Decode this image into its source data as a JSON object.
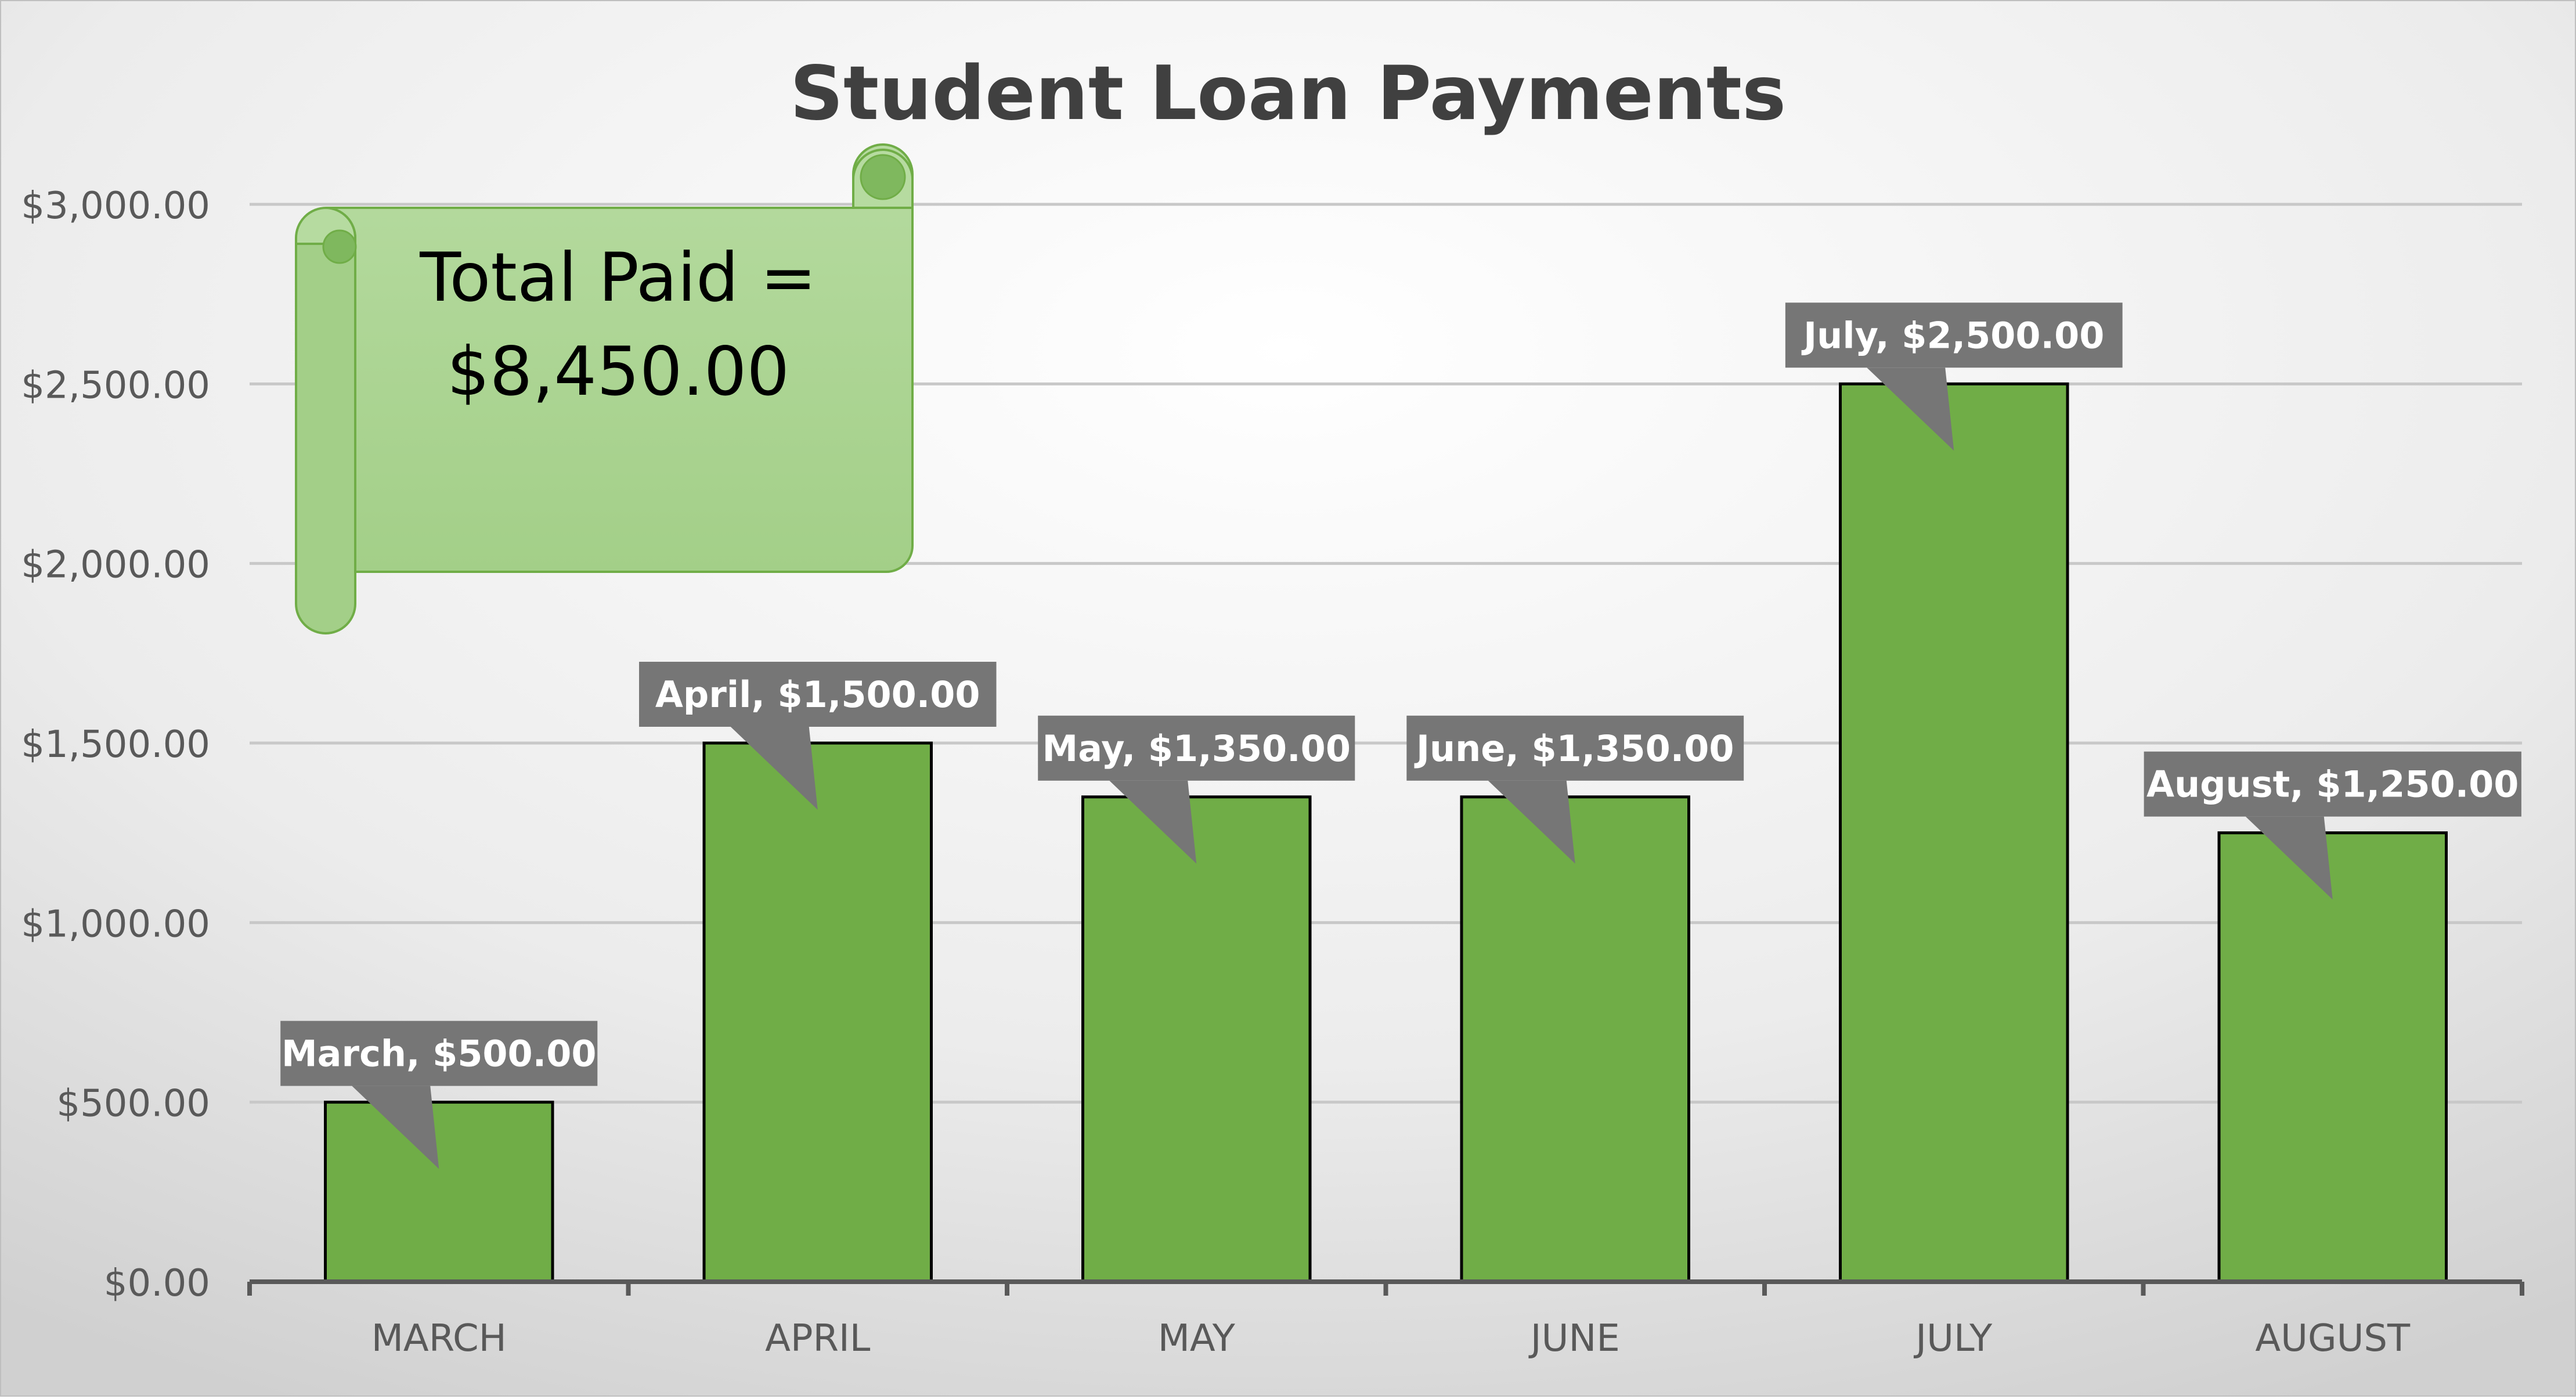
{
  "chart_data": {
    "type": "bar",
    "title": "Student Loan Payments",
    "categories": [
      "MARCH",
      "APRIL",
      "MAY",
      "JUNE",
      "JULY",
      "AUGUST"
    ],
    "series": [
      {
        "values": [
          500,
          1500,
          1350,
          1350,
          2500,
          1250
        ]
      }
    ],
    "data_labels": [
      "March, $500.00",
      "April, $1,500.00",
      "May, $1,350.00",
      "June, $1,350.00",
      "July, $2,500.00",
      "August, $1,250.00"
    ],
    "y_ticks": [
      "$0.00",
      "$500.00",
      "$1,000.00",
      "$1,500.00",
      "$2,000.00",
      "$2,500.00",
      "$3,000.00"
    ],
    "y_tick_values": [
      0,
      500,
      1000,
      1500,
      2000,
      2500,
      3000
    ],
    "ylim": [
      0,
      3000
    ],
    "grid": true,
    "legend": "none",
    "annotation": {
      "line1": "Total Paid =",
      "line2": "$8,450.00"
    },
    "colors": {
      "bar": "#70ad47",
      "bar_border": "#000000",
      "label_bg": "#767676",
      "label_text": "#ffffff",
      "grid": "#c8c8c8",
      "axis": "#595959",
      "title": "#404040",
      "scroll_fill": "#a9d18e",
      "scroll_stroke": "#70ad47"
    }
  }
}
